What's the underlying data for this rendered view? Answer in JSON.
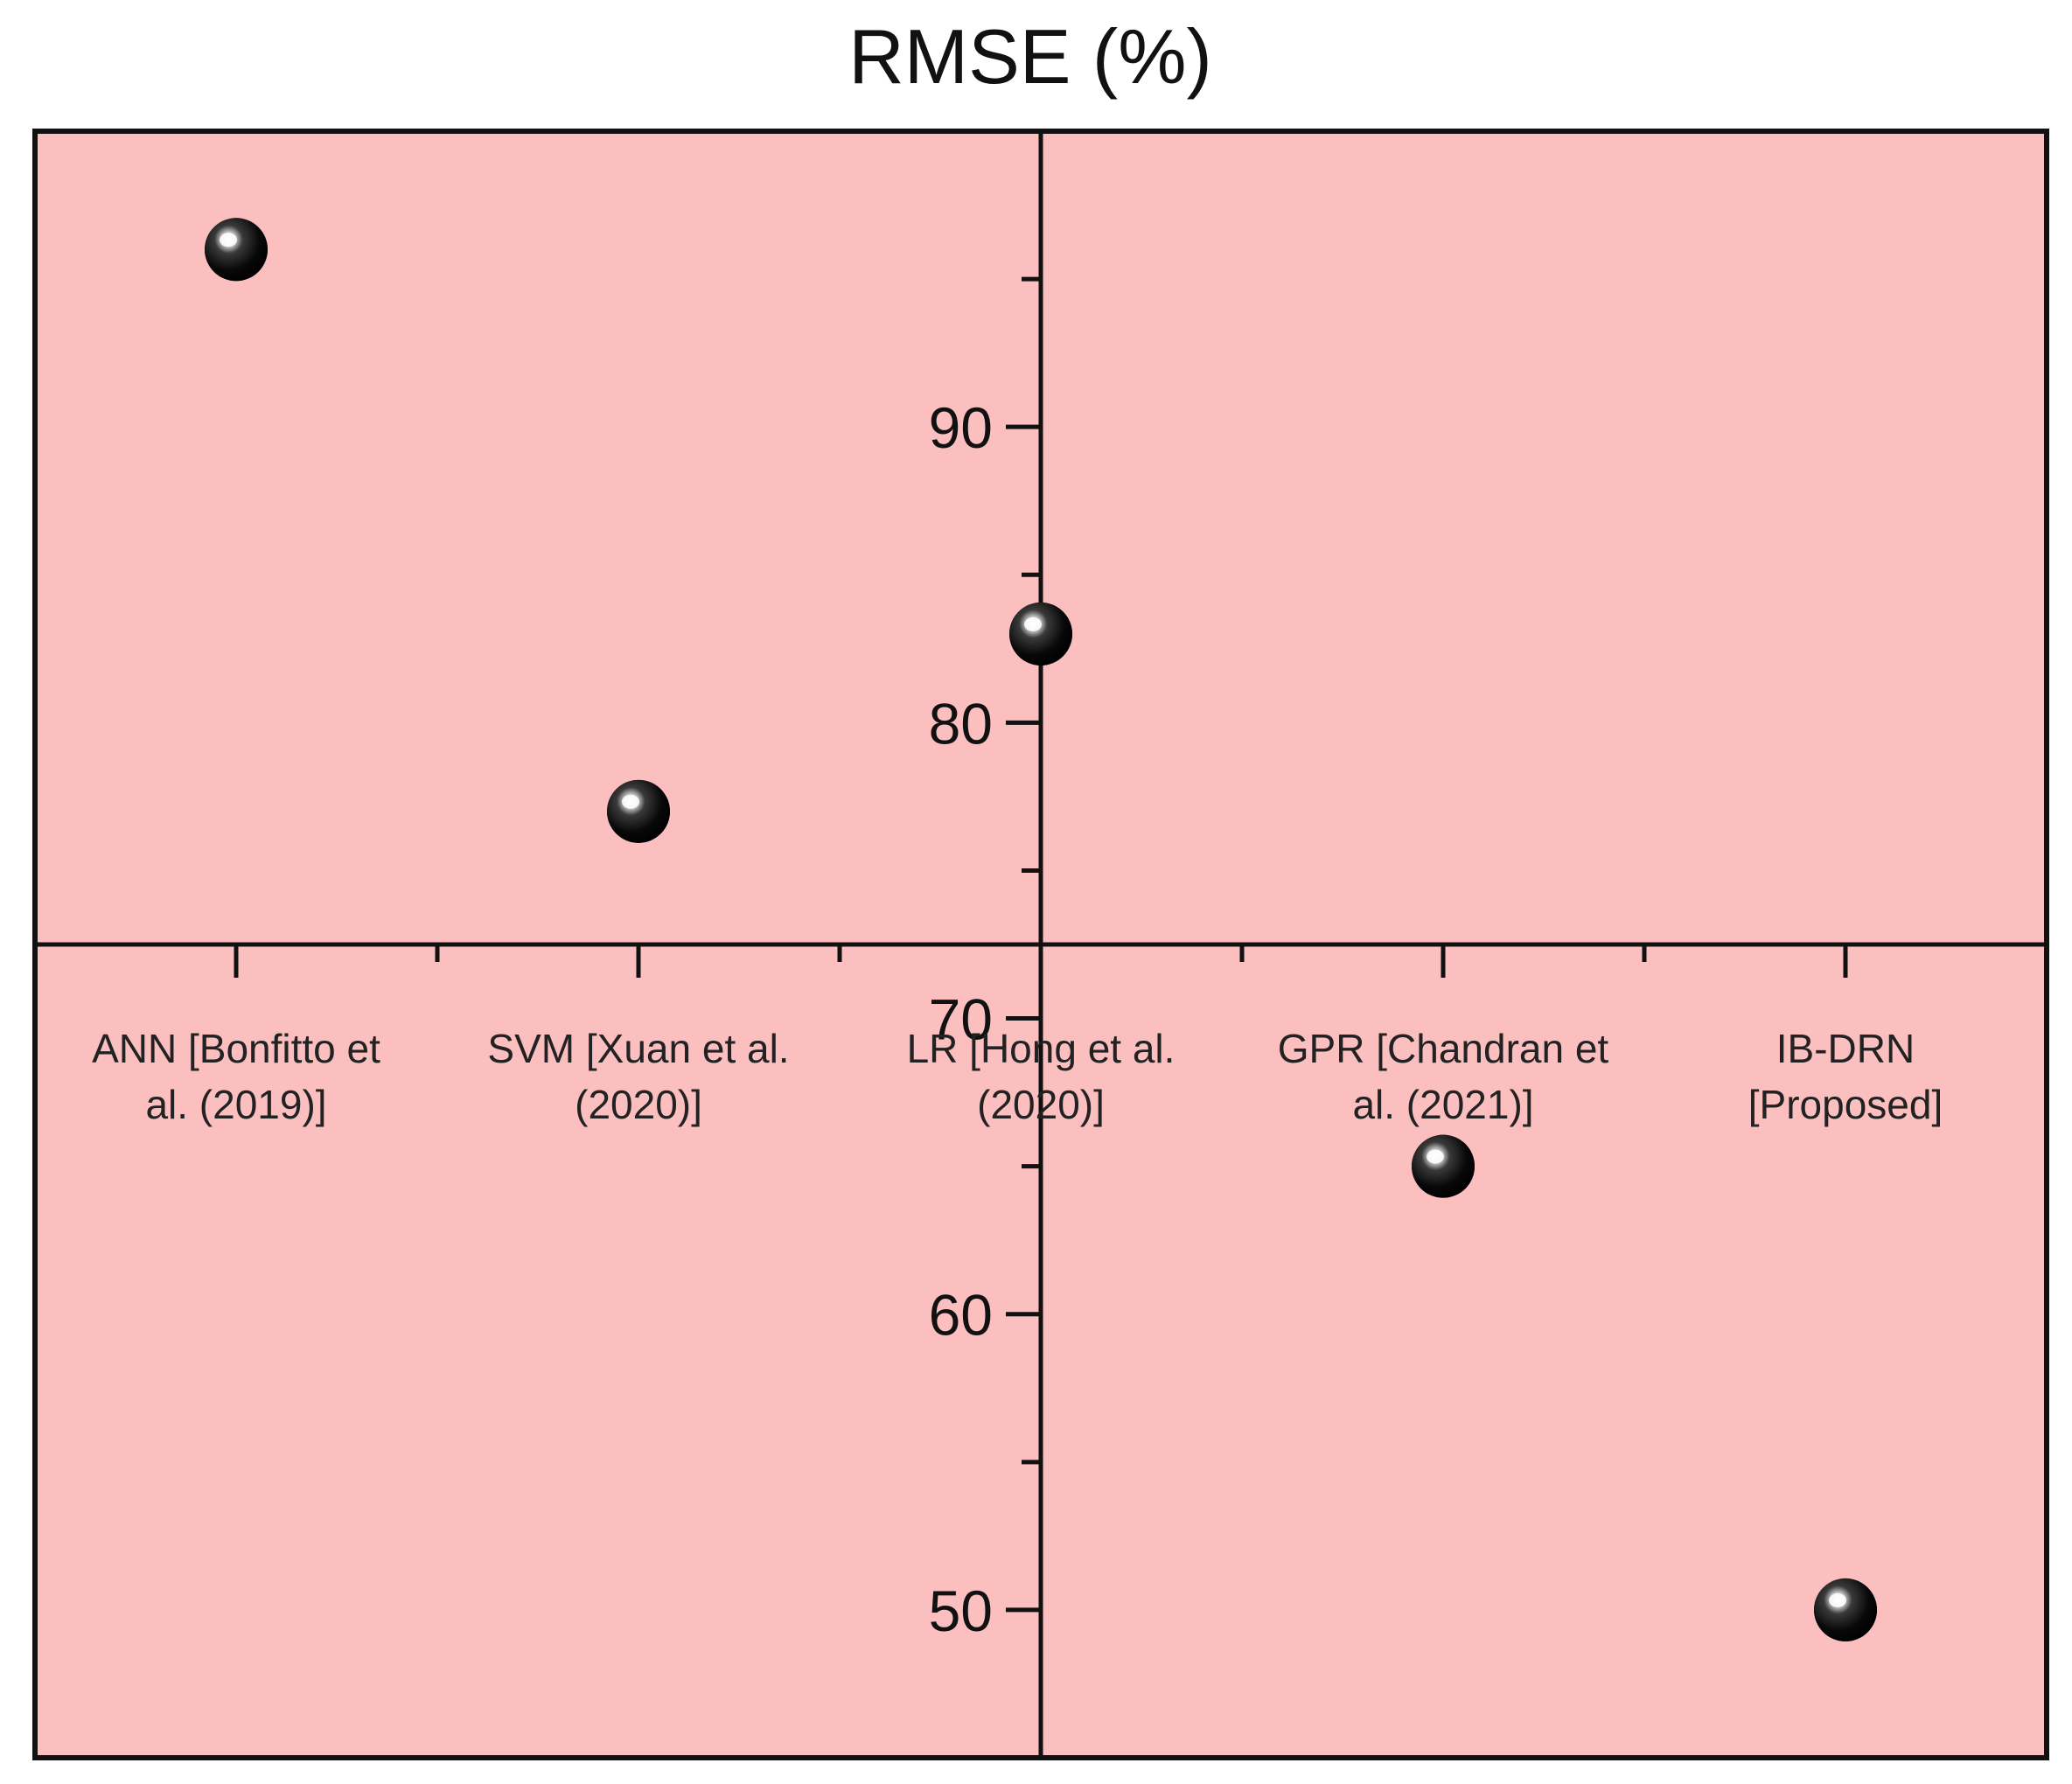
{
  "chart_data": {
    "type": "scatter",
    "title": "RMSE (%)",
    "xlabel": "",
    "ylabel": "",
    "categories": [
      [
        "ANN [Bonfitto et",
        "al. (2019)]"
      ],
      [
        "SVM [Xuan et al.",
        "(2020)]"
      ],
      [
        "LR [Hong et al.",
        "(2020)]"
      ],
      [
        "GPR [Chandran et",
        "al. (2021)]"
      ],
      [
        "IB-DRN",
        "[Proposed]"
      ]
    ],
    "values": [
      96.0,
      77.0,
      83.0,
      65.0,
      50.0
    ],
    "ylim": [
      45.0,
      100.0
    ],
    "y_ticks": [
      50,
      60,
      70,
      80,
      90
    ],
    "x_axis_crosses_y": 72.5,
    "grid": false,
    "colors": {
      "background": "#fbbfc0",
      "axis": "#111111",
      "marker": "#050505",
      "highlight": "#ffffff"
    }
  }
}
